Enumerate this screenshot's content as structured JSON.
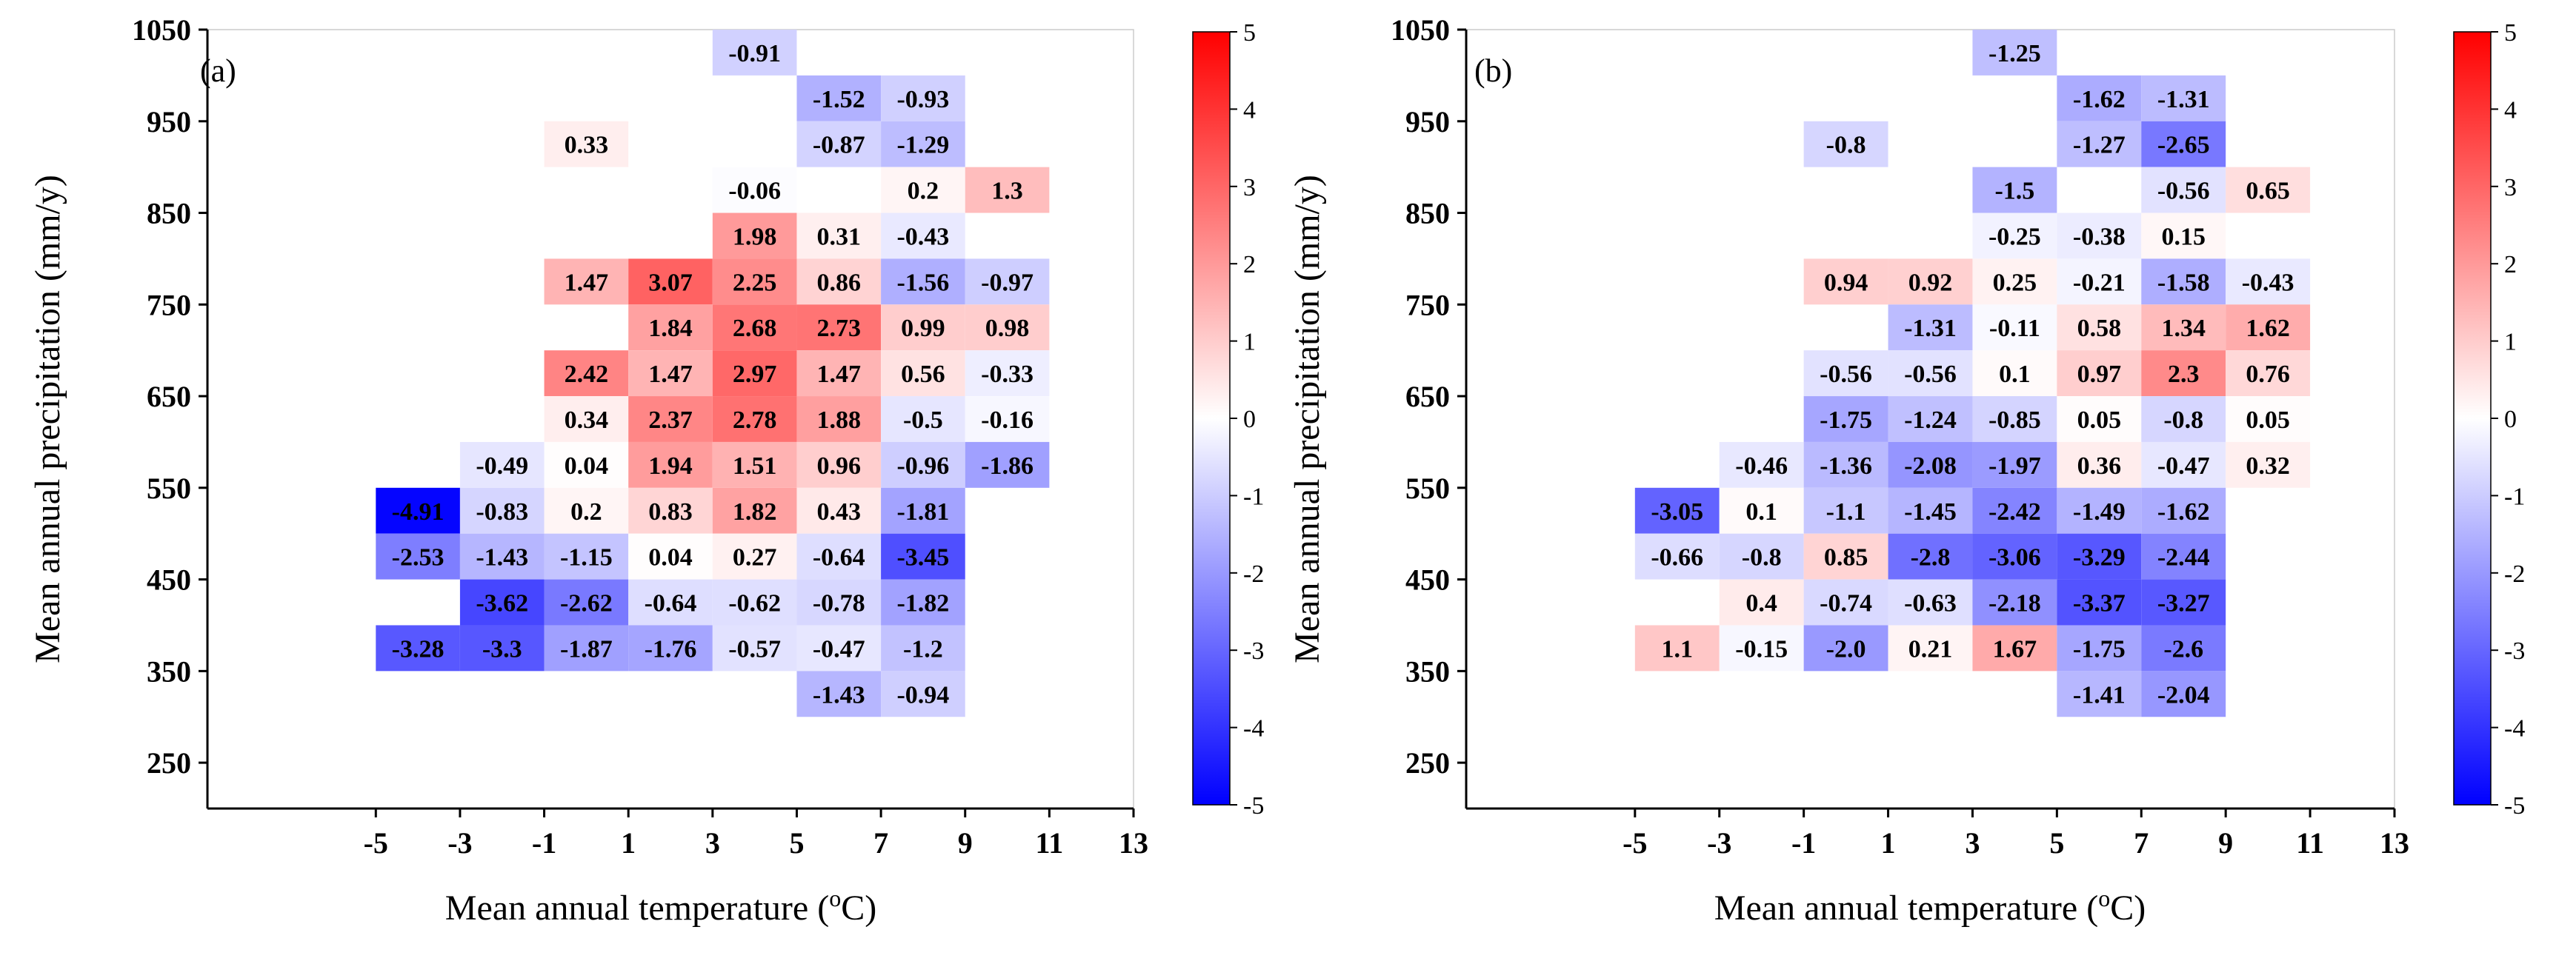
{
  "chart_data": [
    {
      "type": "heatmap",
      "panel_label": "(a)",
      "xlabel": "Mean annual temperature (",
      "xlabel_sup": "o",
      "xlabel_end": "C)",
      "ylabel": "Mean annual precipitation (mm/y)",
      "xlim": [
        -9,
        13
      ],
      "ylim": [
        200,
        1050
      ],
      "xticks": [
        -5,
        -3,
        -1,
        1,
        3,
        5,
        7,
        9,
        11,
        13
      ],
      "xtick_labels": [
        "-5",
        "-3",
        "-1",
        "1",
        "3",
        "5",
        "7",
        "9",
        "11",
        "13"
      ],
      "yticks": [
        250,
        350,
        450,
        550,
        650,
        750,
        850,
        950,
        1050
      ],
      "ytick_labels": [
        "250",
        "350",
        "450",
        "550",
        "650",
        "750",
        "850",
        "950",
        "1050"
      ],
      "x_bins": [
        -5,
        -3,
        -1,
        1,
        3,
        5,
        7,
        9,
        11
      ],
      "y_bins": [
        300,
        350,
        400,
        450,
        500,
        550,
        600,
        650,
        700,
        750,
        800,
        850,
        900,
        950,
        1000
      ],
      "bin_size": {
        "x": 2,
        "y": 50
      },
      "color_range": [
        -5,
        5
      ],
      "colorbar_ticks": [
        5,
        4,
        3,
        2,
        1,
        0,
        -1,
        -2,
        -3,
        -4,
        -5
      ],
      "colorbar_labels": [
        "5",
        "4",
        "3",
        "2",
        "1",
        "0",
        "-1",
        "-2",
        "-3",
        "-4",
        "-5"
      ],
      "cells": [
        {
          "x0": 3,
          "y0": 1000,
          "value": -0.91,
          "label": "-0.91"
        },
        {
          "x0": 5,
          "y0": 950,
          "value": -1.52,
          "label": "-1.52"
        },
        {
          "x0": 7,
          "y0": 950,
          "value": -0.93,
          "label": "-0.93"
        },
        {
          "x0": -1,
          "y0": 900,
          "value": 0.33,
          "label": "0.33"
        },
        {
          "x0": 5,
          "y0": 900,
          "value": -0.87,
          "label": "-0.87"
        },
        {
          "x0": 7,
          "y0": 900,
          "value": -1.29,
          "label": "-1.29"
        },
        {
          "x0": 3,
          "y0": 850,
          "value": -0.06,
          "label": "-0.06"
        },
        {
          "x0": 7,
          "y0": 850,
          "value": 0.2,
          "label": "0.2"
        },
        {
          "x0": 9,
          "y0": 850,
          "value": 1.3,
          "label": "1.3"
        },
        {
          "x0": 3,
          "y0": 800,
          "value": 1.98,
          "label": "1.98"
        },
        {
          "x0": 5,
          "y0": 800,
          "value": 0.31,
          "label": "0.31"
        },
        {
          "x0": 7,
          "y0": 800,
          "value": -0.43,
          "label": "-0.43"
        },
        {
          "x0": -1,
          "y0": 750,
          "value": 1.47,
          "label": "1.47"
        },
        {
          "x0": 1,
          "y0": 750,
          "value": 3.07,
          "label": "3.07"
        },
        {
          "x0": 3,
          "y0": 750,
          "value": 2.25,
          "label": "2.25"
        },
        {
          "x0": 5,
          "y0": 750,
          "value": 0.86,
          "label": "0.86"
        },
        {
          "x0": 7,
          "y0": 750,
          "value": -1.56,
          "label": "-1.56"
        },
        {
          "x0": 9,
          "y0": 750,
          "value": -0.97,
          "label": "-0.97"
        },
        {
          "x0": 1,
          "y0": 700,
          "value": 1.84,
          "label": "1.84"
        },
        {
          "x0": 3,
          "y0": 700,
          "value": 2.68,
          "label": "2.68"
        },
        {
          "x0": 5,
          "y0": 700,
          "value": 2.73,
          "label": "2.73"
        },
        {
          "x0": 7,
          "y0": 700,
          "value": 0.99,
          "label": "0.99"
        },
        {
          "x0": 9,
          "y0": 700,
          "value": 0.98,
          "label": "0.98"
        },
        {
          "x0": -1,
          "y0": 650,
          "value": 2.42,
          "label": "2.42"
        },
        {
          "x0": 1,
          "y0": 650,
          "value": 1.47,
          "label": "1.47"
        },
        {
          "x0": 3,
          "y0": 650,
          "value": 2.97,
          "label": "2.97"
        },
        {
          "x0": 5,
          "y0": 650,
          "value": 1.47,
          "label": "1.47"
        },
        {
          "x0": 7,
          "y0": 650,
          "value": 0.56,
          "label": "0.56"
        },
        {
          "x0": 9,
          "y0": 650,
          "value": -0.33,
          "label": "-0.33"
        },
        {
          "x0": -1,
          "y0": 600,
          "value": 0.34,
          "label": "0.34"
        },
        {
          "x0": 1,
          "y0": 600,
          "value": 2.37,
          "label": "2.37"
        },
        {
          "x0": 3,
          "y0": 600,
          "value": 2.78,
          "label": "2.78"
        },
        {
          "x0": 5,
          "y0": 600,
          "value": 1.88,
          "label": "1.88"
        },
        {
          "x0": 7,
          "y0": 600,
          "value": -0.5,
          "label": "-0.5"
        },
        {
          "x0": 9,
          "y0": 600,
          "value": -0.16,
          "label": "-0.16"
        },
        {
          "x0": -3,
          "y0": 550,
          "value": -0.49,
          "label": "-0.49"
        },
        {
          "x0": -1,
          "y0": 550,
          "value": 0.04,
          "label": "0.04"
        },
        {
          "x0": 1,
          "y0": 550,
          "value": 1.94,
          "label": "1.94"
        },
        {
          "x0": 3,
          "y0": 550,
          "value": 1.51,
          "label": "1.51"
        },
        {
          "x0": 5,
          "y0": 550,
          "value": 0.96,
          "label": "0.96"
        },
        {
          "x0": 7,
          "y0": 550,
          "value": -0.96,
          "label": "-0.96"
        },
        {
          "x0": 9,
          "y0": 550,
          "value": -1.86,
          "label": "-1.86"
        },
        {
          "x0": -5,
          "y0": 500,
          "value": -4.91,
          "label": "-4.91"
        },
        {
          "x0": -3,
          "y0": 500,
          "value": -0.83,
          "label": "-0.83"
        },
        {
          "x0": -1,
          "y0": 500,
          "value": 0.2,
          "label": "0.2"
        },
        {
          "x0": 1,
          "y0": 500,
          "value": 0.83,
          "label": "0.83"
        },
        {
          "x0": 3,
          "y0": 500,
          "value": 1.82,
          "label": "1.82"
        },
        {
          "x0": 5,
          "y0": 500,
          "value": 0.43,
          "label": "0.43"
        },
        {
          "x0": 7,
          "y0": 500,
          "value": -1.81,
          "label": "-1.81"
        },
        {
          "x0": -5,
          "y0": 450,
          "value": -2.53,
          "label": "-2.53"
        },
        {
          "x0": -3,
          "y0": 450,
          "value": -1.43,
          "label": "-1.43"
        },
        {
          "x0": -1,
          "y0": 450,
          "value": -1.15,
          "label": "-1.15"
        },
        {
          "x0": 1,
          "y0": 450,
          "value": 0.04,
          "label": "0.04"
        },
        {
          "x0": 3,
          "y0": 450,
          "value": 0.27,
          "label": "0.27"
        },
        {
          "x0": 5,
          "y0": 450,
          "value": -0.64,
          "label": "-0.64"
        },
        {
          "x0": 7,
          "y0": 450,
          "value": -3.45,
          "label": "-3.45"
        },
        {
          "x0": -3,
          "y0": 400,
          "value": -3.62,
          "label": "-3.62"
        },
        {
          "x0": -1,
          "y0": 400,
          "value": -2.62,
          "label": "-2.62"
        },
        {
          "x0": 1,
          "y0": 400,
          "value": -0.64,
          "label": "-0.64"
        },
        {
          "x0": 3,
          "y0": 400,
          "value": -0.62,
          "label": "-0.62"
        },
        {
          "x0": 5,
          "y0": 400,
          "value": -0.78,
          "label": "-0.78"
        },
        {
          "x0": 7,
          "y0": 400,
          "value": -1.82,
          "label": "-1.82"
        },
        {
          "x0": -5,
          "y0": 350,
          "value": -3.28,
          "label": "-3.28"
        },
        {
          "x0": -3,
          "y0": 350,
          "value": -3.3,
          "label": "-3.3"
        },
        {
          "x0": -1,
          "y0": 350,
          "value": -1.87,
          "label": "-1.87"
        },
        {
          "x0": 1,
          "y0": 350,
          "value": -1.76,
          "label": "-1.76"
        },
        {
          "x0": 3,
          "y0": 350,
          "value": -0.57,
          "label": "-0.57"
        },
        {
          "x0": 5,
          "y0": 350,
          "value": -0.47,
          "label": "-0.47"
        },
        {
          "x0": 7,
          "y0": 350,
          "value": -1.2,
          "label": "-1.2"
        },
        {
          "x0": 5,
          "y0": 300,
          "value": -1.43,
          "label": "-1.43"
        },
        {
          "x0": 7,
          "y0": 300,
          "value": -0.94,
          "label": "-0.94"
        }
      ]
    },
    {
      "type": "heatmap",
      "panel_label": "(b)",
      "xlabel": "Mean annual temperature (",
      "xlabel_sup": "o",
      "xlabel_end": "C)",
      "ylabel": "Mean annual precipitation (mm/y)",
      "xlim": [
        -9,
        13
      ],
      "ylim": [
        200,
        1050
      ],
      "xticks": [
        -5,
        -3,
        -1,
        1,
        3,
        5,
        7,
        9,
        11,
        13
      ],
      "xtick_labels": [
        "-5",
        "-3",
        "-1",
        "1",
        "3",
        "5",
        "7",
        "9",
        "11",
        "13"
      ],
      "yticks": [
        250,
        350,
        450,
        550,
        650,
        750,
        850,
        950,
        1050
      ],
      "ytick_labels": [
        "250",
        "350",
        "450",
        "550",
        "650",
        "750",
        "850",
        "950",
        "1050"
      ],
      "x_bins": [
        -5,
        -3,
        -1,
        1,
        3,
        5,
        7,
        9,
        11
      ],
      "y_bins": [
        300,
        350,
        400,
        450,
        500,
        550,
        600,
        650,
        700,
        750,
        800,
        850,
        900,
        950,
        1000
      ],
      "bin_size": {
        "x": 2,
        "y": 50
      },
      "color_range": [
        -5,
        5
      ],
      "colorbar_ticks": [
        5,
        4,
        3,
        2,
        1,
        0,
        -1,
        -2,
        -3,
        -4,
        -5
      ],
      "colorbar_labels": [
        "5",
        "4",
        "3",
        "2",
        "1",
        "0",
        "-1",
        "-2",
        "-3",
        "-4",
        "-5"
      ],
      "cells": [
        {
          "x0": 3,
          "y0": 1000,
          "value": -1.25,
          "label": "-1.25"
        },
        {
          "x0": 5,
          "y0": 950,
          "value": -1.62,
          "label": "-1.62"
        },
        {
          "x0": 7,
          "y0": 950,
          "value": -1.31,
          "label": "-1.31"
        },
        {
          "x0": -1,
          "y0": 900,
          "value": -0.8,
          "label": "-0.8"
        },
        {
          "x0": 5,
          "y0": 900,
          "value": -1.27,
          "label": "-1.27"
        },
        {
          "x0": 7,
          "y0": 900,
          "value": -2.65,
          "label": "-2.65"
        },
        {
          "x0": 3,
          "y0": 850,
          "value": -1.5,
          "label": "-1.5"
        },
        {
          "x0": 7,
          "y0": 850,
          "value": -0.56,
          "label": "-0.56"
        },
        {
          "x0": 9,
          "y0": 850,
          "value": 0.65,
          "label": "0.65"
        },
        {
          "x0": 3,
          "y0": 800,
          "value": -0.25,
          "label": "-0.25"
        },
        {
          "x0": 5,
          "y0": 800,
          "value": -0.38,
          "label": "-0.38"
        },
        {
          "x0": 7,
          "y0": 800,
          "value": 0.15,
          "label": "0.15"
        },
        {
          "x0": -1,
          "y0": 750,
          "value": 0.94,
          "label": "0.94"
        },
        {
          "x0": 1,
          "y0": 750,
          "value": 0.92,
          "label": "0.92"
        },
        {
          "x0": 3,
          "y0": 750,
          "value": 0.25,
          "label": "0.25"
        },
        {
          "x0": 5,
          "y0": 750,
          "value": -0.21,
          "label": "-0.21"
        },
        {
          "x0": 7,
          "y0": 750,
          "value": -1.58,
          "label": "-1.58"
        },
        {
          "x0": 9,
          "y0": 750,
          "value": -0.43,
          "label": "-0.43"
        },
        {
          "x0": 1,
          "y0": 700,
          "value": -1.31,
          "label": "-1.31"
        },
        {
          "x0": 3,
          "y0": 700,
          "value": -0.11,
          "label": "-0.11"
        },
        {
          "x0": 5,
          "y0": 700,
          "value": 0.58,
          "label": "0.58"
        },
        {
          "x0": 7,
          "y0": 700,
          "value": 1.34,
          "label": "1.34"
        },
        {
          "x0": 9,
          "y0": 700,
          "value": 1.62,
          "label": "1.62"
        },
        {
          "x0": -1,
          "y0": 650,
          "value": -0.56,
          "label": "-0.56"
        },
        {
          "x0": 1,
          "y0": 650,
          "value": -0.56,
          "label": "-0.56"
        },
        {
          "x0": 3,
          "y0": 650,
          "value": 0.1,
          "label": "0.1"
        },
        {
          "x0": 5,
          "y0": 650,
          "value": 0.97,
          "label": "0.97"
        },
        {
          "x0": 7,
          "y0": 650,
          "value": 2.3,
          "label": "2.3"
        },
        {
          "x0": 9,
          "y0": 650,
          "value": 0.76,
          "label": "0.76"
        },
        {
          "x0": -1,
          "y0": 600,
          "value": -1.75,
          "label": "-1.75"
        },
        {
          "x0": 1,
          "y0": 600,
          "value": -1.24,
          "label": "-1.24"
        },
        {
          "x0": 3,
          "y0": 600,
          "value": -0.85,
          "label": "-0.85"
        },
        {
          "x0": 5,
          "y0": 600,
          "value": 0.05,
          "label": "0.05"
        },
        {
          "x0": 7,
          "y0": 600,
          "value": -0.8,
          "label": "-0.8"
        },
        {
          "x0": 9,
          "y0": 600,
          "value": 0.05,
          "label": "0.05"
        },
        {
          "x0": -3,
          "y0": 550,
          "value": -0.46,
          "label": "-0.46"
        },
        {
          "x0": -1,
          "y0": 550,
          "value": -1.36,
          "label": "-1.36"
        },
        {
          "x0": 1,
          "y0": 550,
          "value": -2.08,
          "label": "-2.08"
        },
        {
          "x0": 3,
          "y0": 550,
          "value": -1.97,
          "label": "-1.97"
        },
        {
          "x0": 5,
          "y0": 550,
          "value": 0.36,
          "label": "0.36"
        },
        {
          "x0": 7,
          "y0": 550,
          "value": -0.47,
          "label": "-0.47"
        },
        {
          "x0": 9,
          "y0": 550,
          "value": 0.32,
          "label": "0.32"
        },
        {
          "x0": -5,
          "y0": 500,
          "value": -3.05,
          "label": "-3.05"
        },
        {
          "x0": -3,
          "y0": 500,
          "value": 0.1,
          "label": "0.1"
        },
        {
          "x0": -1,
          "y0": 500,
          "value": -1.1,
          "label": "-1.1"
        },
        {
          "x0": 1,
          "y0": 500,
          "value": -1.45,
          "label": "-1.45"
        },
        {
          "x0": 3,
          "y0": 500,
          "value": -2.42,
          "label": "-2.42"
        },
        {
          "x0": 5,
          "y0": 500,
          "value": -1.49,
          "label": "-1.49"
        },
        {
          "x0": 7,
          "y0": 500,
          "value": -1.62,
          "label": "-1.62"
        },
        {
          "x0": -5,
          "y0": 450,
          "value": -0.66,
          "label": "-0.66"
        },
        {
          "x0": -3,
          "y0": 450,
          "value": -0.8,
          "label": "-0.8"
        },
        {
          "x0": -1,
          "y0": 450,
          "value": 0.85,
          "label": "0.85"
        },
        {
          "x0": 1,
          "y0": 450,
          "value": -2.8,
          "label": "-2.8"
        },
        {
          "x0": 3,
          "y0": 450,
          "value": -3.06,
          "label": "-3.06"
        },
        {
          "x0": 5,
          "y0": 450,
          "value": -3.29,
          "label": "-3.29"
        },
        {
          "x0": 7,
          "y0": 450,
          "value": -2.44,
          "label": "-2.44"
        },
        {
          "x0": -3,
          "y0": 400,
          "value": 0.4,
          "label": "0.4"
        },
        {
          "x0": -1,
          "y0": 400,
          "value": -0.74,
          "label": "-0.74"
        },
        {
          "x0": 1,
          "y0": 400,
          "value": -0.63,
          "label": "-0.63"
        },
        {
          "x0": 3,
          "y0": 400,
          "value": -2.18,
          "label": "-2.18"
        },
        {
          "x0": 5,
          "y0": 400,
          "value": -3.37,
          "label": "-3.37"
        },
        {
          "x0": 7,
          "y0": 400,
          "value": -3.27,
          "label": "-3.27"
        },
        {
          "x0": -5,
          "y0": 350,
          "value": 1.1,
          "label": "1.1"
        },
        {
          "x0": -3,
          "y0": 350,
          "value": -0.15,
          "label": "-0.15"
        },
        {
          "x0": -1,
          "y0": 350,
          "value": -2.0,
          "label": "-2.0"
        },
        {
          "x0": 1,
          "y0": 350,
          "value": 0.21,
          "label": "0.21"
        },
        {
          "x0": 3,
          "y0": 350,
          "value": 1.67,
          "label": "1.67"
        },
        {
          "x0": 5,
          "y0": 350,
          "value": -1.75,
          "label": "-1.75"
        },
        {
          "x0": 7,
          "y0": 350,
          "value": -2.6,
          "label": "-2.6"
        },
        {
          "x0": 5,
          "y0": 300,
          "value": -1.41,
          "label": "-1.41"
        },
        {
          "x0": 7,
          "y0": 300,
          "value": -2.04,
          "label": "-2.04"
        }
      ]
    }
  ],
  "colors": {
    "positive": "#ff0000",
    "neutral": "#ffffff",
    "negative": "#0000ff",
    "axis": "#000000",
    "frame": "#cccccc"
  }
}
